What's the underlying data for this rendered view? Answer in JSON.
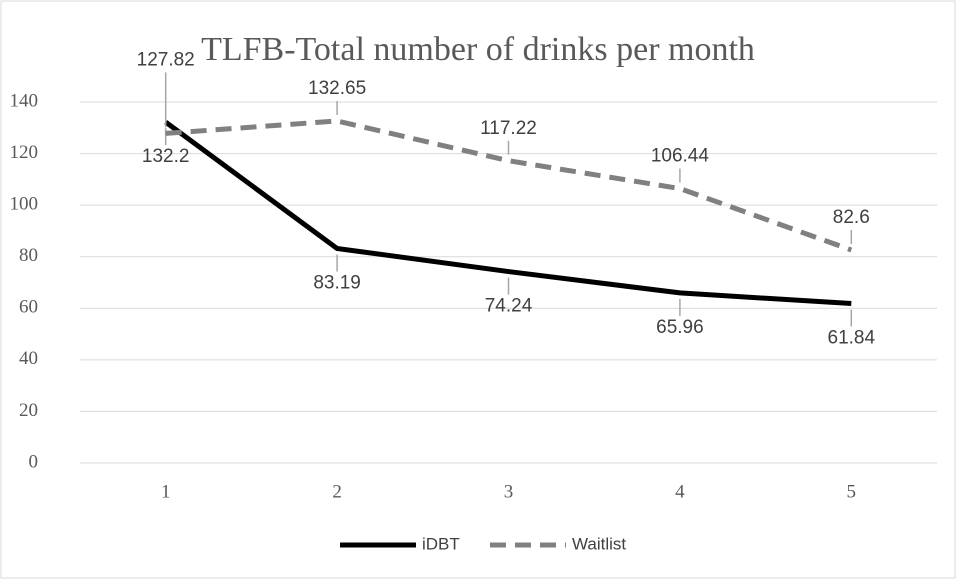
{
  "chart_data": {
    "type": "line",
    "title": "TLFB-Total number of drinks per month",
    "categories": [
      "1",
      "2",
      "3",
      "4",
      "5"
    ],
    "series": [
      {
        "name": "iDBT",
        "color": "#000000",
        "dash": false,
        "values": [
          132.2,
          83.19,
          74.24,
          65.96,
          61.84
        ]
      },
      {
        "name": "Waitlist",
        "color": "#808080",
        "dash": true,
        "values": [
          127.82,
          132.65,
          117.22,
          106.44,
          82.6
        ]
      }
    ],
    "ylim": [
      0,
      140
    ],
    "yticks": [
      0,
      20,
      40,
      60,
      80,
      100,
      120,
      140
    ],
    "grid": true,
    "legend": "bottom"
  }
}
